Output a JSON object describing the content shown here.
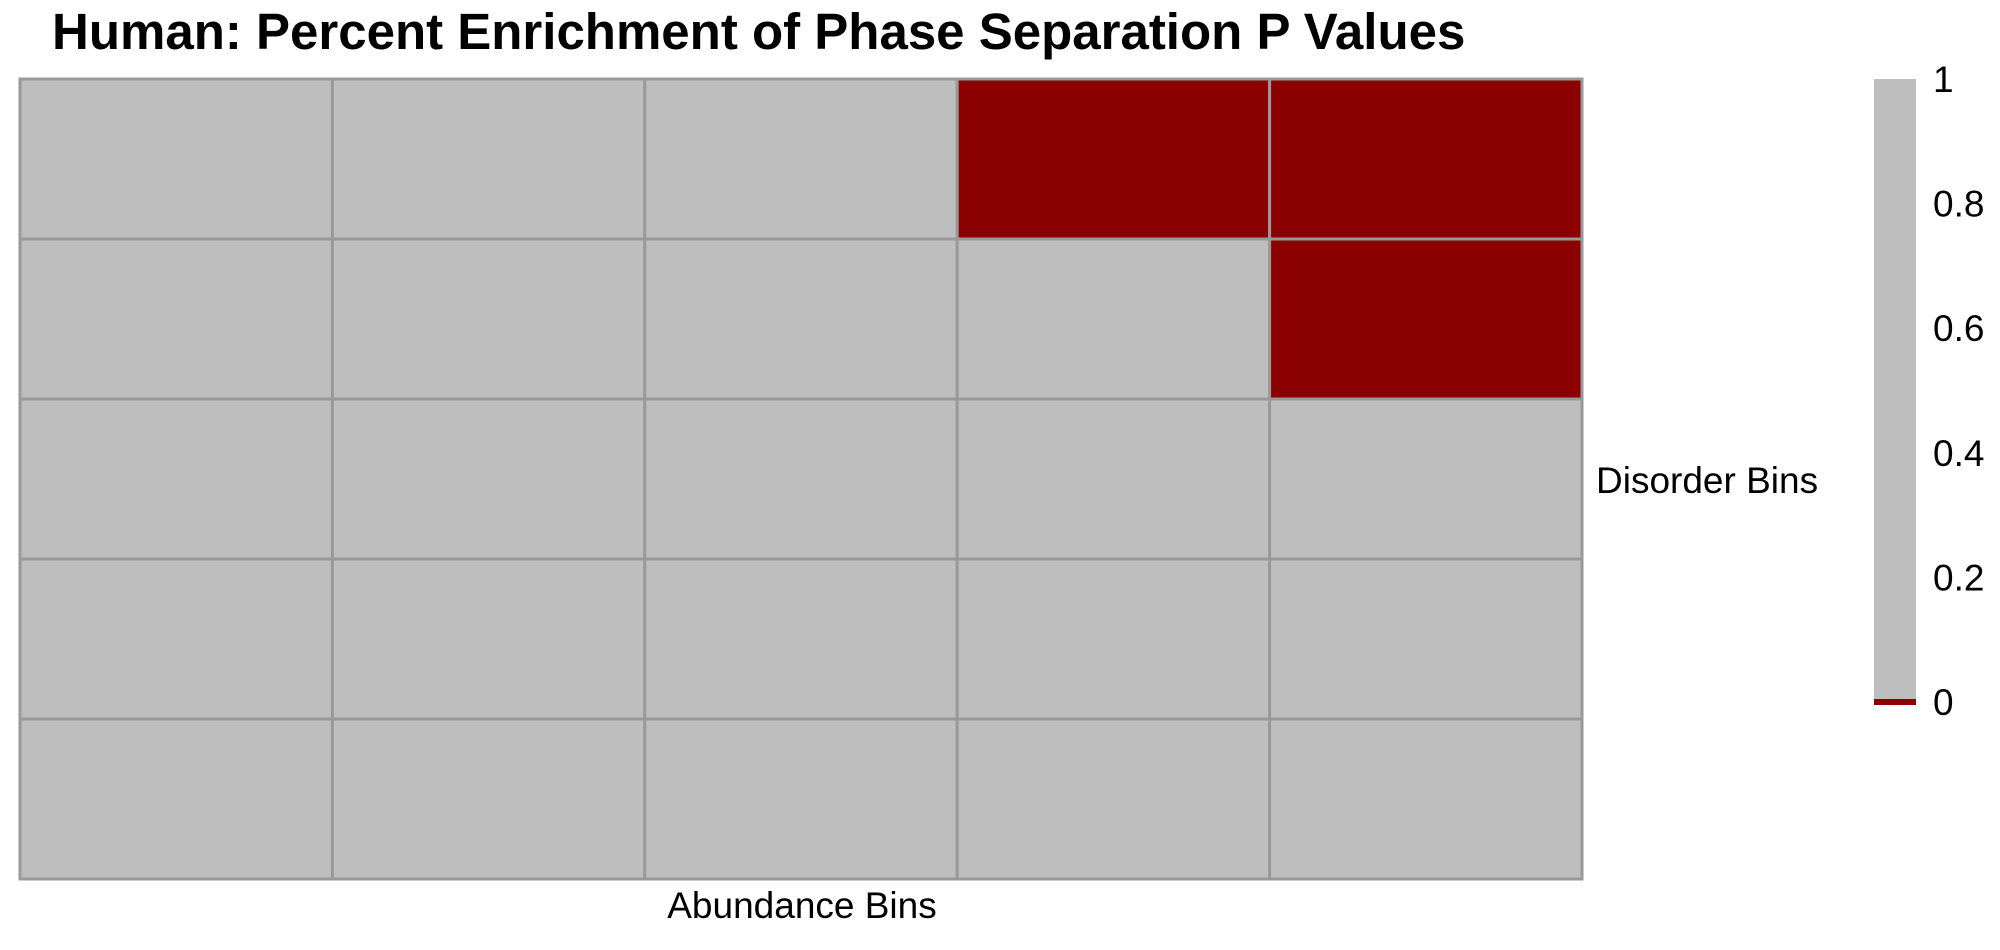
{
  "chart_data": {
    "type": "heatmap",
    "title": "Human: Percent Enrichment of Phase Separation P Values",
    "xlabel": "Abundance Bins",
    "ylabel": "Disorder Bins",
    "n_rows": 5,
    "n_cols": 5,
    "values": [
      [
        1,
        1,
        1,
        0,
        0
      ],
      [
        1,
        1,
        1,
        1,
        0
      ],
      [
        1,
        1,
        1,
        1,
        1
      ],
      [
        1,
        1,
        1,
        1,
        1
      ],
      [
        1,
        1,
        1,
        1,
        1
      ]
    ],
    "value_range": [
      0,
      1
    ],
    "color_zero": "#8b0000",
    "color_other": "#bebebe",
    "grid_line_color": "#999999",
    "legend": {
      "placement": "right",
      "ticks": [
        "1",
        "0.8",
        "0.6",
        "0.4",
        "0.2",
        "0"
      ],
      "tick_values": [
        1,
        0.8,
        0.6,
        0.4,
        0.2,
        0
      ]
    }
  }
}
